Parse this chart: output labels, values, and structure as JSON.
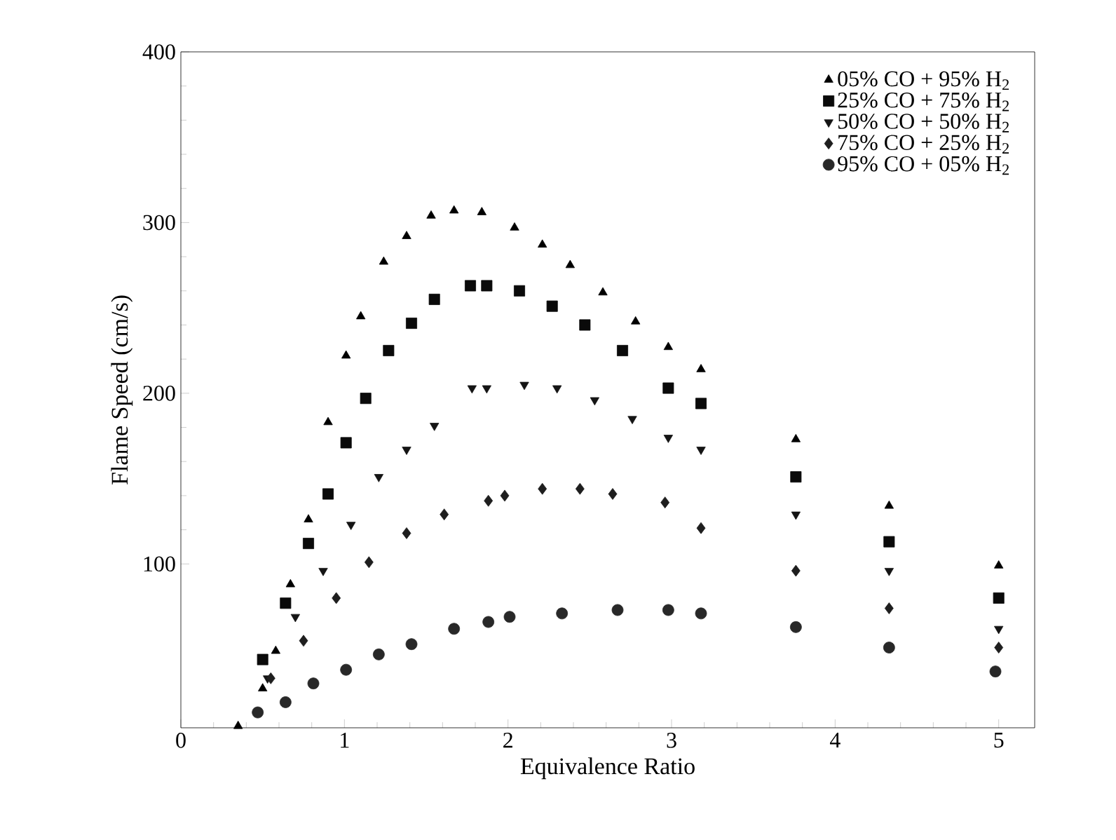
{
  "chart_data": {
    "type": "scatter",
    "xlabel": "Equivalence Ratio",
    "ylabel": "Flame Speed (cm/s)",
    "xlim": [
      0,
      5.22
    ],
    "ylim": [
      4,
      400
    ],
    "xticks": [
      0,
      1,
      2,
      3,
      4,
      5
    ],
    "yticks": [
      100,
      200,
      300,
      400
    ],
    "grid": false,
    "legend": "top right",
    "series": [
      {
        "name": "05% CO + 95% H$_{2}$",
        "color": "#000000",
        "marker": "triangle",
        "x": [
          0.35,
          0.5,
          0.58,
          0.67,
          0.78,
          0.9,
          1.01,
          1.1,
          1.24,
          1.38,
          1.53,
          1.67,
          1.84,
          2.04,
          2.21,
          2.38,
          2.58,
          2.78,
          2.98,
          3.18,
          3.76,
          4.33,
          5.0
        ],
        "values": [
          5,
          27,
          49,
          88,
          126,
          183,
          222,
          245,
          277,
          292,
          304,
          307,
          306,
          297,
          287,
          275,
          259,
          242,
          227,
          214,
          173,
          134,
          99
        ]
      },
      {
        "name": "25% CO + 75% H$_{2}$",
        "color": "#0a0a0a",
        "marker": "square",
        "x": [
          0.5,
          0.64,
          0.78,
          0.9,
          1.01,
          1.13,
          1.27,
          1.41,
          1.55,
          1.77,
          1.87,
          2.07,
          2.27,
          2.47,
          2.7,
          2.98,
          3.18,
          3.76,
          4.33,
          5.0
        ],
        "values": [
          44,
          77,
          112,
          141,
          171,
          197,
          225,
          241,
          255,
          263,
          263,
          260,
          251,
          240,
          225,
          203,
          194,
          151,
          113,
          80
        ]
      },
      {
        "name": "50% CO + 50% H$_{2}$",
        "color": "#141414",
        "marker": "triangle-down",
        "x": [
          0.53,
          0.7,
          0.87,
          1.04,
          1.21,
          1.38,
          1.55,
          1.78,
          1.87,
          2.1,
          2.3,
          2.53,
          2.76,
          2.98,
          3.18,
          3.76,
          4.33,
          5.0
        ],
        "values": [
          33,
          69,
          96,
          123,
          151,
          167,
          181,
          203,
          203,
          205,
          203,
          196,
          185,
          174,
          167,
          129,
          96,
          62
        ]
      },
      {
        "name": "75% CO + 25% H$_{2}$",
        "color": "#1e1e1e",
        "marker": "diamond",
        "x": [
          0.55,
          0.75,
          0.95,
          1.15,
          1.38,
          1.61,
          1.88,
          1.98,
          2.21,
          2.44,
          2.64,
          2.96,
          3.18,
          3.76,
          4.33,
          5.0
        ],
        "values": [
          33,
          55,
          80,
          101,
          118,
          129,
          137,
          140,
          144,
          144,
          141,
          136,
          121,
          96,
          74,
          51
        ]
      },
      {
        "name": "95% CO + 05% H$_{2}$",
        "color": "#282828",
        "marker": "circle",
        "x": [
          0.47,
          0.64,
          0.81,
          1.01,
          1.21,
          1.41,
          1.67,
          1.88,
          2.01,
          2.33,
          2.67,
          2.98,
          3.18,
          3.76,
          4.33,
          4.98
        ],
        "values": [
          13,
          19,
          30,
          38,
          47,
          53,
          62,
          66,
          69,
          71,
          73,
          73,
          71,
          63,
          51,
          37
        ]
      }
    ]
  }
}
